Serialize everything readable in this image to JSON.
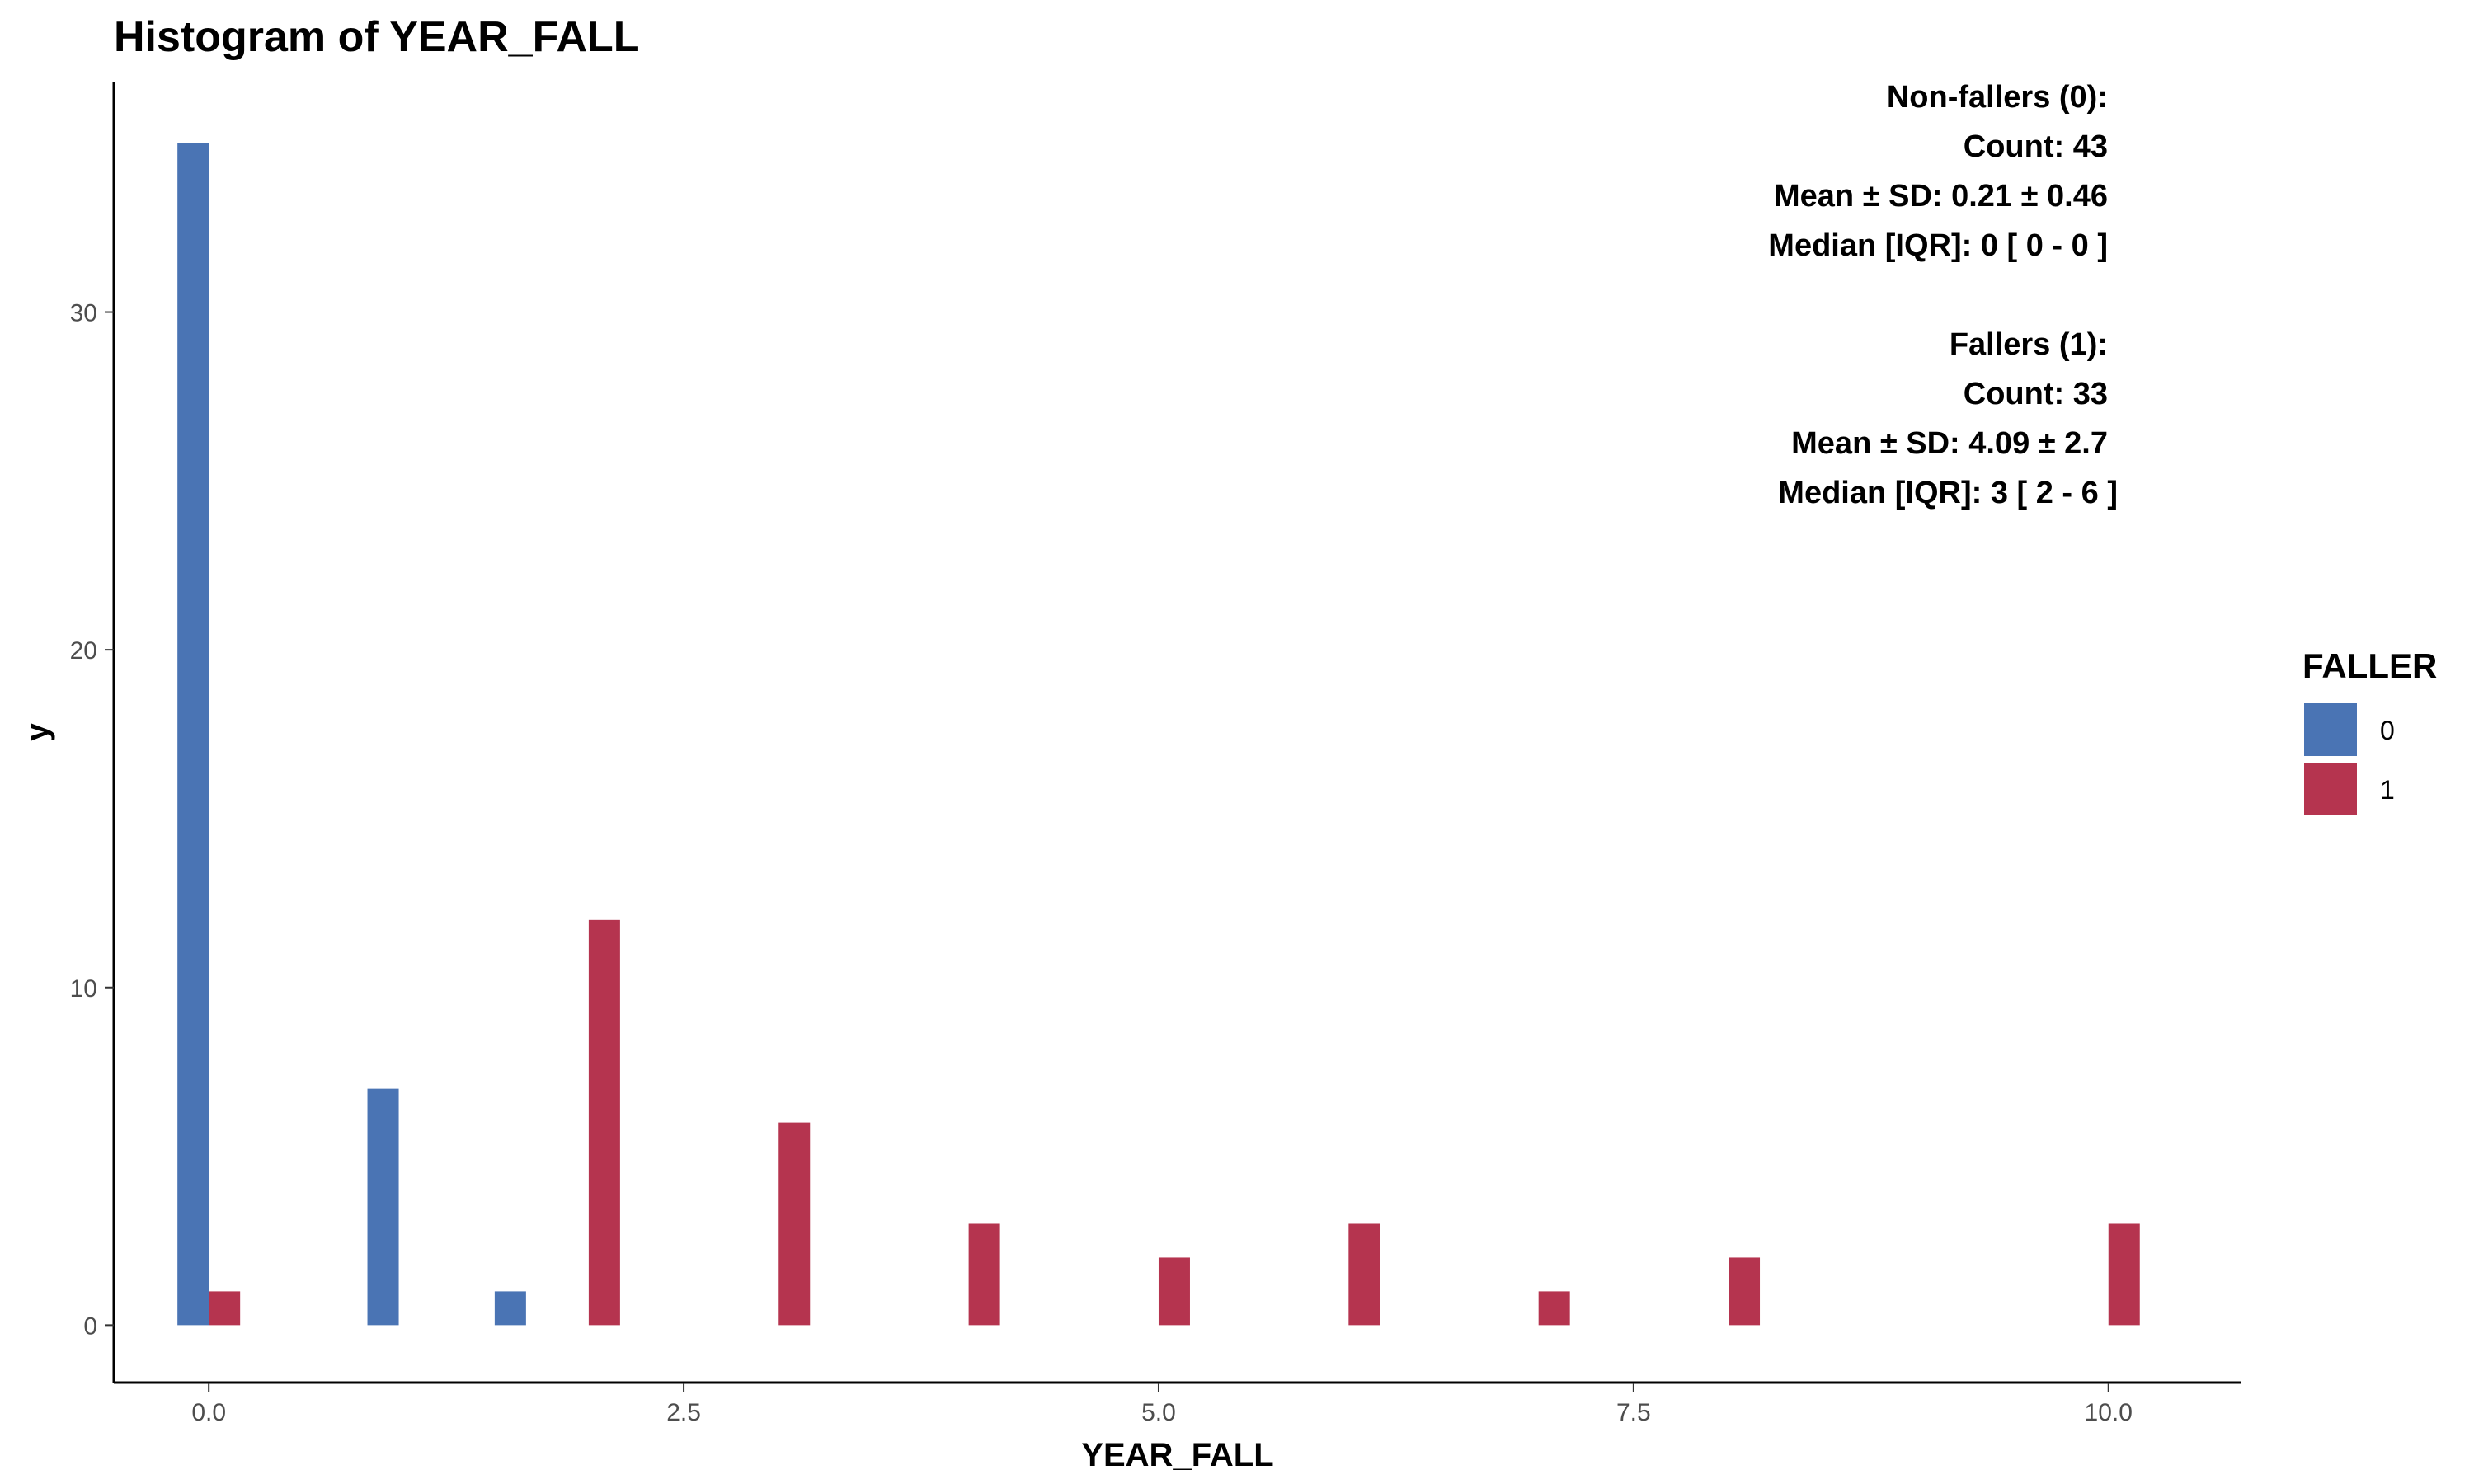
{
  "chart_data": {
    "type": "bar",
    "title": "Histogram of YEAR_FALL",
    "xlabel": "YEAR_FALL",
    "ylabel": "y",
    "xlim": [
      -0.5,
      10.7
    ],
    "ylim": [
      -1.7,
      36.8
    ],
    "x_ticks": [
      0,
      2.5,
      5,
      7.5,
      10
    ],
    "x_tick_labels": [
      "0.0",
      "2.5",
      "5.0",
      "7.5",
      "10.0"
    ],
    "y_ticks": [
      0,
      10,
      20,
      30
    ],
    "y_tick_labels": [
      "0",
      "10",
      "20",
      "30"
    ],
    "grid": false,
    "legend": {
      "title": "FALLER",
      "position": "right"
    },
    "series": [
      {
        "name": "0",
        "color": "#4a74b4",
        "points": [
          {
            "x": 0.0,
            "y": 35
          },
          {
            "x": 1.0,
            "y": 7
          },
          {
            "x": 1.67,
            "y": 1
          }
        ]
      },
      {
        "name": "1",
        "color": "#b5344f",
        "points": [
          {
            "x": 0.0,
            "y": 1
          },
          {
            "x": 2.0,
            "y": 12
          },
          {
            "x": 3.0,
            "y": 6
          },
          {
            "x": 4.0,
            "y": 3
          },
          {
            "x": 5.0,
            "y": 2
          },
          {
            "x": 6.0,
            "y": 3
          },
          {
            "x": 7.0,
            "y": 1
          },
          {
            "x": 8.0,
            "y": 2
          },
          {
            "x": 10.0,
            "y": 3
          }
        ]
      }
    ],
    "annotation_lines": [
      "Non-fallers (0):",
      "Count: 43",
      "Mean ± SD: 0.21 ± 0.46",
      "Median [IQR]: 0 [ 0 - 0 ]",
      "",
      "Fallers (1):",
      "Count: 33",
      "Mean ± SD: 4.09 ± 2.7",
      "Median [IQR]: 3 [ 2 - 6 ]"
    ]
  }
}
